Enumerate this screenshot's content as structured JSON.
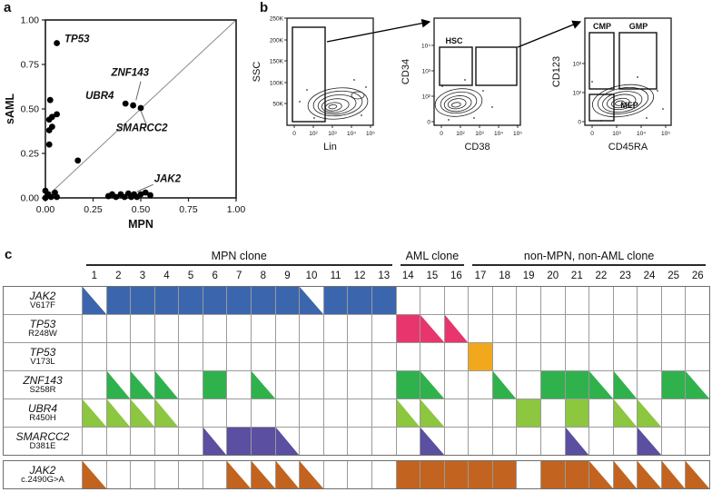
{
  "figure": {
    "panel_a": {
      "label": "a",
      "xlabel": "MPN",
      "ylabel": "sAML",
      "xticks": [
        "0.00",
        "0.25",
        "0.50",
        "0.75",
        "1.00"
      ],
      "yticks": [
        "0.00",
        "0.25",
        "0.50",
        "0.75",
        "1.00"
      ]
    },
    "panel_b": {
      "label": "b",
      "plots": [
        {
          "ylabel": "SSC",
          "xlabel": "Lin",
          "yticks": [
            "50K",
            "100K",
            "150K",
            "200K",
            "250K"
          ],
          "xticks": [
            "0",
            "10²",
            "10³",
            "10⁴",
            "10⁵"
          ],
          "gate_labels": []
        },
        {
          "ylabel": "CD34",
          "xlabel": "CD38",
          "yticks": [
            "0",
            "10²",
            "10³",
            "10⁴"
          ],
          "xticks": [
            "0",
            "10²",
            "10³",
            "10⁴",
            "10⁵"
          ],
          "gate_labels": [
            "HSC"
          ]
        },
        {
          "ylabel": "CD123",
          "xlabel": "CD45RA",
          "yticks": [
            "0",
            "10²",
            "10³"
          ],
          "xticks": [
            "0",
            "10³",
            "10⁴",
            "10⁵"
          ],
          "gate_labels": [
            "CMP",
            "GMP",
            "MEP"
          ]
        }
      ]
    },
    "panel_c": {
      "label": "c",
      "groups": [
        {
          "label": "MPN clone",
          "start": 1,
          "end": 13
        },
        {
          "label": "AML clone",
          "start": 14,
          "end": 16
        },
        {
          "label": "non-MPN, non-AML clone",
          "start": 17,
          "end": 26
        }
      ]
    }
  },
  "chart_data": [
    {
      "id": "panel_a_scatter",
      "type": "scatter",
      "xlabel": "MPN",
      "ylabel": "sAML",
      "xlim": [
        0,
        1
      ],
      "ylim": [
        0,
        1
      ],
      "points": [
        [
          0.0,
          0.0
        ],
        [
          0.015,
          0.02
        ],
        [
          0.03,
          0.005
        ],
        [
          0.0,
          0.04
        ],
        [
          0.05,
          0.03
        ],
        [
          0.06,
          0.005
        ],
        [
          0.02,
          0.3
        ],
        [
          0.02,
          0.38
        ],
        [
          0.035,
          0.4
        ],
        [
          0.02,
          0.44
        ],
        [
          0.035,
          0.455
        ],
        [
          0.06,
          0.47
        ],
        [
          0.025,
          0.55
        ],
        [
          0.06,
          0.87
        ],
        [
          0.17,
          0.21
        ],
        [
          0.42,
          0.53
        ],
        [
          0.46,
          0.52
        ],
        [
          0.5,
          0.505
        ],
        [
          0.33,
          0.01
        ],
        [
          0.35,
          0.02
        ],
        [
          0.37,
          0.005
        ],
        [
          0.395,
          0.02
        ],
        [
          0.415,
          0.005
        ],
        [
          0.435,
          0.025
        ],
        [
          0.45,
          0.005
        ],
        [
          0.465,
          0.02
        ],
        [
          0.48,
          0.005
        ],
        [
          0.5,
          0.02
        ],
        [
          0.525,
          0.03
        ],
        [
          0.55,
          0.015
        ]
      ],
      "labels": [
        {
          "text": "TP53",
          "x": 0.1,
          "y": 0.875,
          "line": null
        },
        {
          "text": "ZNF143",
          "x": 0.345,
          "y": 0.685,
          "line": [
            0.5,
            0.655,
            0.475,
            0.55
          ]
        },
        {
          "text": "UBR4",
          "x": 0.21,
          "y": 0.555,
          "line": null
        },
        {
          "text": "SMARCC2",
          "x": 0.37,
          "y": 0.375,
          "line": [
            0.53,
            0.41,
            0.5,
            0.49
          ]
        },
        {
          "text": "JAK2",
          "x": 0.57,
          "y": 0.09,
          "line": [
            0.565,
            0.075,
            0.48,
            0.035
          ]
        }
      ]
    },
    {
      "id": "panel_c_clone_grid",
      "type": "heatmap",
      "columns": [
        1,
        2,
        3,
        4,
        5,
        6,
        7,
        8,
        9,
        10,
        11,
        12,
        13,
        14,
        15,
        16,
        17,
        18,
        19,
        20,
        21,
        22,
        23,
        24,
        25,
        26
      ],
      "cell_states": {
        "F": "full",
        "T": "half-triangle",
        "": "absent"
      },
      "rows": [
        {
          "gene": "JAK2",
          "mutation": "V617F",
          "color": "#3b66ad",
          "cells": [
            "T",
            "F",
            "F",
            "F",
            "F",
            "F",
            "F",
            "F",
            "F",
            "T",
            "F",
            "F",
            "F",
            "",
            "",
            "",
            "",
            "",
            "",
            "",
            "",
            "",
            "",
            "",
            "",
            ""
          ]
        },
        {
          "gene": "TP53",
          "mutation": "R248W",
          "color": "#e8356d",
          "cells": [
            "",
            "",
            "",
            "",
            "",
            "",
            "",
            "",
            "",
            "",
            "",
            "",
            "",
            "F",
            "T",
            "T",
            "",
            "",
            "",
            "",
            "",
            "",
            "",
            "",
            "",
            ""
          ]
        },
        {
          "gene": "TP53",
          "mutation": "V173L",
          "color": "#f2a81d",
          "cells": [
            "",
            "",
            "",
            "",
            "",
            "",
            "",
            "",
            "",
            "",
            "",
            "",
            "",
            "",
            "",
            "",
            "F",
            "",
            "",
            "",
            "",
            "",
            "",
            "",
            "",
            ""
          ]
        },
        {
          "gene": "ZNF143",
          "mutation": "S258R",
          "color": "#2fb24c",
          "cells": [
            "",
            "T",
            "T",
            "T",
            "",
            "F",
            "",
            "T",
            "",
            "",
            "",
            "",
            "",
            "F",
            "T",
            "",
            "",
            "T",
            "",
            "F",
            "F",
            "T",
            "T",
            "",
            "F",
            "T"
          ]
        },
        {
          "gene": "UBR4",
          "mutation": "R450H",
          "color": "#8dc63f",
          "cells": [
            "T",
            "T",
            "T",
            "T",
            "",
            "",
            "",
            "",
            "",
            "",
            "",
            "",
            "",
            "T",
            "T",
            "",
            "",
            "",
            "F",
            "",
            "F",
            "",
            "T",
            "T",
            "",
            ""
          ]
        },
        {
          "gene": "SMARCC2",
          "mutation": "D381E",
          "color": "#5a4fa0",
          "cells": [
            "",
            "",
            "",
            "",
            "",
            "T",
            "F",
            "F",
            "T",
            "",
            "",
            "",
            "",
            "",
            "T",
            "",
            "",
            "",
            "",
            "",
            "T",
            "",
            "",
            "T",
            "",
            ""
          ]
        },
        {
          "gene": "JAK2",
          "mutation": "c.2490G>A",
          "color": "#c2641f",
          "cells": [
            "T",
            "",
            "",
            "",
            "",
            "",
            "T",
            "T",
            "T",
            "T",
            "",
            "",
            "",
            "F",
            "F",
            "F",
            "F",
            "F",
            "",
            "F",
            "F",
            "T",
            "T",
            "T",
            "T",
            "T"
          ]
        }
      ]
    }
  ]
}
